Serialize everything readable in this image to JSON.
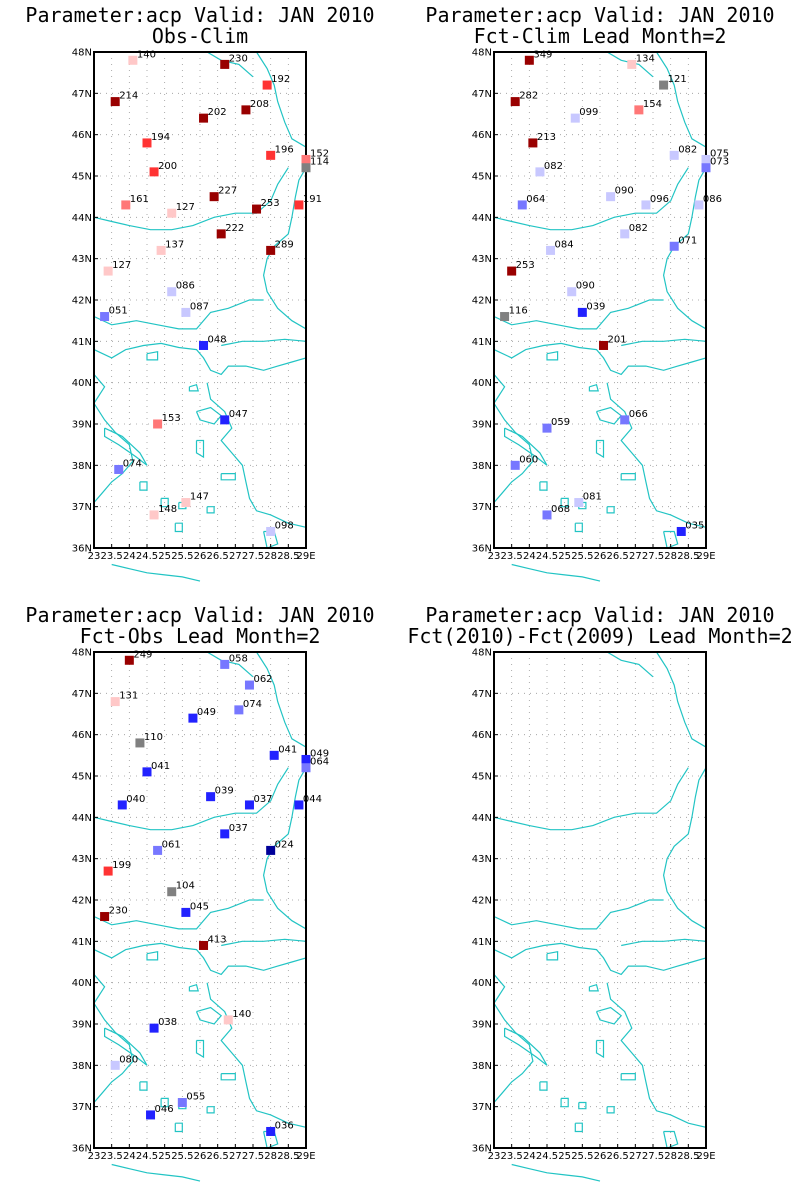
{
  "colors": {
    "coast": "#22c4c4",
    "grid": "#999999",
    "marker_palette": {
      "dark_red": "#990000",
      "red": "#ff3333",
      "salmon": "#ff7777",
      "light_pink": "#ffc8c8",
      "grey": "#808080",
      "light_blue": "#c8c8ff",
      "mid_blue": "#7777ff",
      "blue": "#2222ff",
      "navy": "#000099"
    }
  },
  "y_ticks": [
    "48N",
    "47N",
    "46N",
    "45N",
    "44N",
    "43N",
    "42N",
    "41N",
    "40N",
    "39N",
    "38N",
    "37N",
    "36N"
  ],
  "x_ticks": [
    "23",
    "23.5",
    "24",
    "24.5",
    "25",
    "25.5",
    "26",
    "26.5",
    "27",
    "27.5",
    "28",
    "28.5",
    "29E"
  ],
  "panels": [
    {
      "title1": "Parameter:acp Valid: JAN 2010",
      "title2": "Obs-Clim",
      "points": [
        {
          "lon": 24.1,
          "lat": 47.8,
          "label": "140",
          "c": "light_pink"
        },
        {
          "lon": 26.7,
          "lat": 47.7,
          "label": "230",
          "c": "dark_red"
        },
        {
          "lon": 27.9,
          "lat": 47.2,
          "label": "192",
          "c": "red"
        },
        {
          "lon": 23.6,
          "lat": 46.8,
          "label": "214",
          "c": "dark_red"
        },
        {
          "lon": 27.3,
          "lat": 46.6,
          "label": "208",
          "c": "dark_red"
        },
        {
          "lon": 26.1,
          "lat": 46.4,
          "label": "202",
          "c": "dark_red"
        },
        {
          "lon": 24.5,
          "lat": 45.8,
          "label": "194",
          "c": "red"
        },
        {
          "lon": 28.0,
          "lat": 45.5,
          "label": "196",
          "c": "red"
        },
        {
          "lon": 29.0,
          "lat": 45.4,
          "label": "152",
          "c": "salmon"
        },
        {
          "lon": 29.0,
          "lat": 45.2,
          "label": "114",
          "c": "grey"
        },
        {
          "lon": 24.7,
          "lat": 45.1,
          "label": "200",
          "c": "red"
        },
        {
          "lon": 26.4,
          "lat": 44.5,
          "label": "227",
          "c": "dark_red"
        },
        {
          "lon": 23.9,
          "lat": 44.3,
          "label": "161",
          "c": "salmon"
        },
        {
          "lon": 25.2,
          "lat": 44.1,
          "label": "127",
          "c": "light_pink"
        },
        {
          "lon": 27.6,
          "lat": 44.2,
          "label": "253",
          "c": "dark_red"
        },
        {
          "lon": 28.8,
          "lat": 44.3,
          "label": "191",
          "c": "red"
        },
        {
          "lon": 26.6,
          "lat": 43.6,
          "label": "222",
          "c": "dark_red"
        },
        {
          "lon": 28.0,
          "lat": 43.2,
          "label": "289",
          "c": "dark_red"
        },
        {
          "lon": 24.9,
          "lat": 43.2,
          "label": "137",
          "c": "light_pink"
        },
        {
          "lon": 23.4,
          "lat": 42.7,
          "label": "127",
          "c": "light_pink"
        },
        {
          "lon": 25.2,
          "lat": 42.2,
          "label": "086",
          "c": "light_blue"
        },
        {
          "lon": 25.6,
          "lat": 41.7,
          "label": "087",
          "c": "light_blue"
        },
        {
          "lon": 23.3,
          "lat": 41.6,
          "label": "051",
          "c": "mid_blue"
        },
        {
          "lon": 26.1,
          "lat": 40.9,
          "label": "048",
          "c": "blue"
        },
        {
          "lon": 26.7,
          "lat": 39.1,
          "label": "047",
          "c": "blue"
        },
        {
          "lon": 24.8,
          "lat": 39.0,
          "label": "153",
          "c": "salmon"
        },
        {
          "lon": 23.7,
          "lat": 37.9,
          "label": "074",
          "c": "mid_blue"
        },
        {
          "lon": 25.6,
          "lat": 37.1,
          "label": "147",
          "c": "light_pink"
        },
        {
          "lon": 24.7,
          "lat": 36.8,
          "label": "148",
          "c": "light_pink"
        },
        {
          "lon": 28.0,
          "lat": 36.4,
          "label": "098",
          "c": "light_blue"
        }
      ]
    },
    {
      "title1": "Parameter:acp Valid: JAN 2010",
      "title2": "Fct-Clim Lead Month=2",
      "points": [
        {
          "lon": 24.0,
          "lat": 47.8,
          "label": "349",
          "c": "dark_red"
        },
        {
          "lon": 26.9,
          "lat": 47.7,
          "label": "134",
          "c": "light_pink"
        },
        {
          "lon": 27.8,
          "lat": 47.2,
          "label": "121",
          "c": "grey"
        },
        {
          "lon": 23.6,
          "lat": 46.8,
          "label": "282",
          "c": "dark_red"
        },
        {
          "lon": 27.1,
          "lat": 46.6,
          "label": "154",
          "c": "salmon"
        },
        {
          "lon": 25.3,
          "lat": 46.4,
          "label": "099",
          "c": "light_blue"
        },
        {
          "lon": 24.1,
          "lat": 45.8,
          "label": "213",
          "c": "dark_red"
        },
        {
          "lon": 28.1,
          "lat": 45.5,
          "label": "082",
          "c": "light_blue"
        },
        {
          "lon": 29.0,
          "lat": 45.4,
          "label": "075",
          "c": "light_blue"
        },
        {
          "lon": 29.0,
          "lat": 45.2,
          "label": "073",
          "c": "mid_blue"
        },
        {
          "lon": 24.3,
          "lat": 45.1,
          "label": "082",
          "c": "light_blue"
        },
        {
          "lon": 26.3,
          "lat": 44.5,
          "label": "090",
          "c": "light_blue"
        },
        {
          "lon": 23.8,
          "lat": 44.3,
          "label": "064",
          "c": "mid_blue"
        },
        {
          "lon": 27.3,
          "lat": 44.3,
          "label": "096",
          "c": "light_blue"
        },
        {
          "lon": 28.8,
          "lat": 44.3,
          "label": "086",
          "c": "light_blue"
        },
        {
          "lon": 26.7,
          "lat": 43.6,
          "label": "082",
          "c": "light_blue"
        },
        {
          "lon": 28.1,
          "lat": 43.3,
          "label": "071",
          "c": "mid_blue"
        },
        {
          "lon": 24.6,
          "lat": 43.2,
          "label": "084",
          "c": "light_blue"
        },
        {
          "lon": 23.5,
          "lat": 42.7,
          "label": "253",
          "c": "dark_red"
        },
        {
          "lon": 25.2,
          "lat": 42.2,
          "label": "090",
          "c": "light_blue"
        },
        {
          "lon": 25.5,
          "lat": 41.7,
          "label": "039",
          "c": "blue"
        },
        {
          "lon": 23.3,
          "lat": 41.6,
          "label": "116",
          "c": "grey"
        },
        {
          "lon": 26.1,
          "lat": 40.9,
          "label": "201",
          "c": "dark_red"
        },
        {
          "lon": 26.7,
          "lat": 39.1,
          "label": "066",
          "c": "mid_blue"
        },
        {
          "lon": 24.5,
          "lat": 38.9,
          "label": "059",
          "c": "mid_blue"
        },
        {
          "lon": 23.6,
          "lat": 38.0,
          "label": "060",
          "c": "mid_blue"
        },
        {
          "lon": 25.4,
          "lat": 37.1,
          "label": "081",
          "c": "light_blue"
        },
        {
          "lon": 24.5,
          "lat": 36.8,
          "label": "068",
          "c": "mid_blue"
        },
        {
          "lon": 28.3,
          "lat": 36.4,
          "label": "035",
          "c": "blue"
        }
      ]
    },
    {
      "title1": "Parameter:acp Valid: JAN 2010",
      "title2": "Fct-Obs Lead Month=2",
      "points": [
        {
          "lon": 24.0,
          "lat": 47.8,
          "label": "249",
          "c": "dark_red"
        },
        {
          "lon": 26.7,
          "lat": 47.7,
          "label": "058",
          "c": "mid_blue"
        },
        {
          "lon": 27.4,
          "lat": 47.2,
          "label": "062",
          "c": "mid_blue"
        },
        {
          "lon": 23.6,
          "lat": 46.8,
          "label": "131",
          "c": "light_pink"
        },
        {
          "lon": 27.1,
          "lat": 46.6,
          "label": "074",
          "c": "mid_blue"
        },
        {
          "lon": 25.8,
          "lat": 46.4,
          "label": "049",
          "c": "blue"
        },
        {
          "lon": 24.3,
          "lat": 45.8,
          "label": "110",
          "c": "grey"
        },
        {
          "lon": 28.1,
          "lat": 45.5,
          "label": "041",
          "c": "blue"
        },
        {
          "lon": 29.0,
          "lat": 45.4,
          "label": "049",
          "c": "blue"
        },
        {
          "lon": 29.0,
          "lat": 45.2,
          "label": "064",
          "c": "mid_blue"
        },
        {
          "lon": 24.5,
          "lat": 45.1,
          "label": "041",
          "c": "blue"
        },
        {
          "lon": 26.3,
          "lat": 44.5,
          "label": "039",
          "c": "blue"
        },
        {
          "lon": 23.8,
          "lat": 44.3,
          "label": "040",
          "c": "blue"
        },
        {
          "lon": 27.4,
          "lat": 44.3,
          "label": "037",
          "c": "blue"
        },
        {
          "lon": 28.8,
          "lat": 44.3,
          "label": "044",
          "c": "blue"
        },
        {
          "lon": 26.7,
          "lat": 43.6,
          "label": "037",
          "c": "blue"
        },
        {
          "lon": 28.0,
          "lat": 43.2,
          "label": "024",
          "c": "navy"
        },
        {
          "lon": 24.8,
          "lat": 43.2,
          "label": "061",
          "c": "mid_blue"
        },
        {
          "lon": 23.4,
          "lat": 42.7,
          "label": "199",
          "c": "red"
        },
        {
          "lon": 25.2,
          "lat": 42.2,
          "label": "104",
          "c": "grey"
        },
        {
          "lon": 25.6,
          "lat": 41.7,
          "label": "045",
          "c": "blue"
        },
        {
          "lon": 23.3,
          "lat": 41.6,
          "label": "230",
          "c": "dark_red"
        },
        {
          "lon": 26.1,
          "lat": 40.9,
          "label": "413",
          "c": "dark_red"
        },
        {
          "lon": 26.8,
          "lat": 39.1,
          "label": "140",
          "c": "light_pink"
        },
        {
          "lon": 24.7,
          "lat": 38.9,
          "label": "038",
          "c": "blue"
        },
        {
          "lon": 23.6,
          "lat": 38.0,
          "label": "080",
          "c": "light_blue"
        },
        {
          "lon": 25.5,
          "lat": 37.1,
          "label": "055",
          "c": "mid_blue"
        },
        {
          "lon": 24.6,
          "lat": 36.8,
          "label": "046",
          "c": "blue"
        },
        {
          "lon": 28.0,
          "lat": 36.4,
          "label": "036",
          "c": "blue"
        }
      ]
    },
    {
      "title1": "Parameter:acp Valid: JAN 2010",
      "title2": "Fct(2010)-Fct(2009) Lead Month=2",
      "points": []
    }
  ]
}
